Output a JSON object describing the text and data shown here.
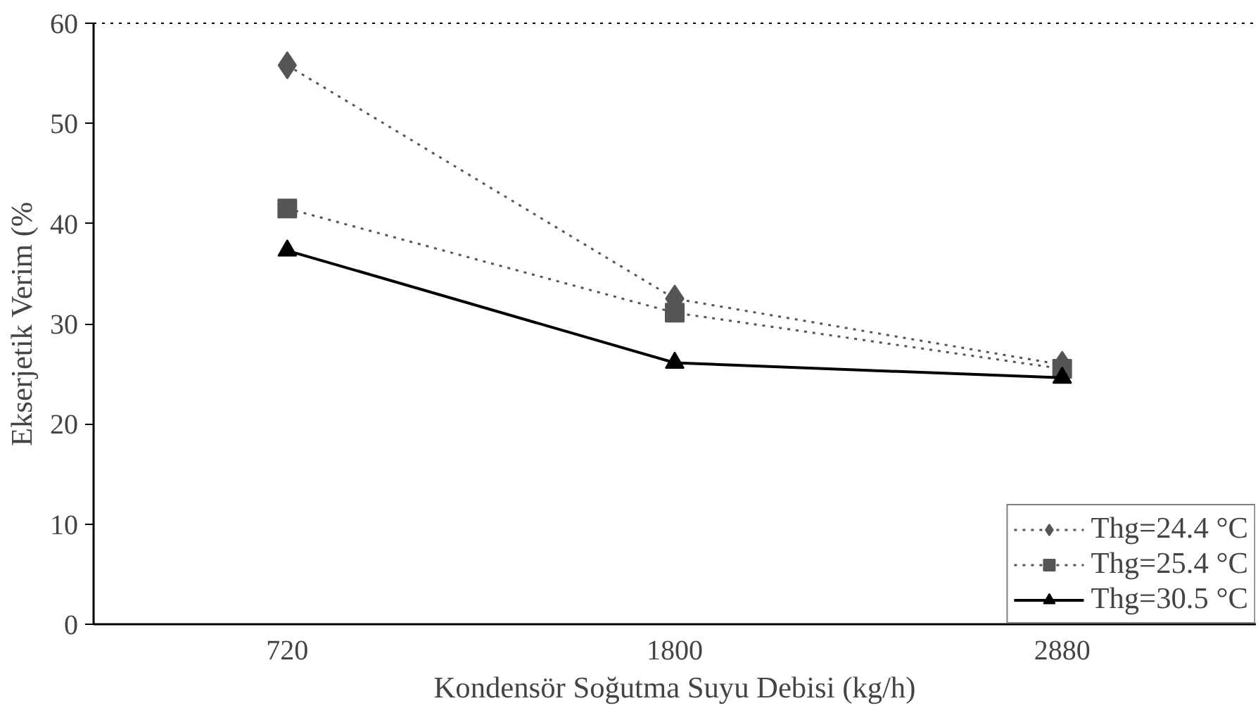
{
  "chart_data": {
    "type": "line",
    "xlabel": "Kondensör Soğutma Suyu Debisi (kg/h)",
    "ylabel": "Ekserjetik Verim (%",
    "categories": [
      "720",
      "1800",
      "2880"
    ],
    "series": [
      {
        "name": "Thg=24.4 °C",
        "color": "#555555",
        "values": [
          55.8,
          32.5,
          25.9
        ],
        "marker": "diamond",
        "line_style": "dotted"
      },
      {
        "name": "Thg=25.4 °C",
        "color": "#555555",
        "values": [
          41.5,
          31.1,
          25.5
        ],
        "marker": "square",
        "line_style": "dotted"
      },
      {
        "name": "Thg=30.5 °C",
        "color": "#000000",
        "values": [
          37.3,
          26.1,
          24.6
        ],
        "marker": "triangle",
        "line_style": "solid"
      }
    ],
    "ylim": [
      0,
      60
    ],
    "yticks": [
      0,
      10,
      20,
      30,
      40,
      50,
      60
    ],
    "grid": false,
    "legend": "bottom right"
  }
}
